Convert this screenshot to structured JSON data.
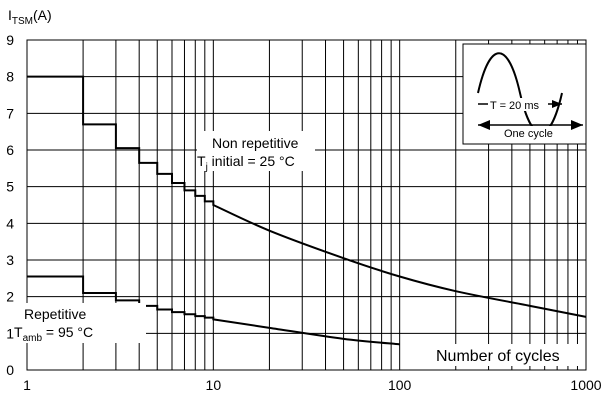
{
  "chart_data": {
    "type": "line",
    "x_scale": "log",
    "xlim": [
      1,
      1000
    ],
    "ylim": [
      0,
      9
    ],
    "grid": true,
    "y_axis_title_main": "I",
    "y_axis_title_sub": "TSM",
    "y_axis_title_unit": "(A)",
    "x_axis_title": "Number of cycles",
    "x_ticks": [
      "1",
      "10",
      "100",
      "1000"
    ],
    "y_ticks": [
      "0",
      "1",
      "2",
      "3",
      "4",
      "5",
      "6",
      "7",
      "8",
      "9"
    ],
    "series": [
      {
        "label_line1": "Non repetitive",
        "label_line2_main": "T",
        "label_line2_sub": "j",
        "label_line2_rest": " initial = 25 °C",
        "steps": [
          {
            "x": 1,
            "y": 8.0
          },
          {
            "x": 2,
            "y": 6.7
          },
          {
            "x": 3,
            "y": 6.05
          },
          {
            "x": 4,
            "y": 5.65
          },
          {
            "x": 5,
            "y": 5.35
          },
          {
            "x": 6,
            "y": 5.1
          },
          {
            "x": 7,
            "y": 4.9
          },
          {
            "x": 8,
            "y": 4.75
          },
          {
            "x": 9,
            "y": 4.6
          }
        ],
        "curve": [
          {
            "x": 10,
            "y": 4.5
          },
          {
            "x": 20,
            "y": 3.8
          },
          {
            "x": 50,
            "y": 3.05
          },
          {
            "x": 100,
            "y": 2.55
          },
          {
            "x": 200,
            "y": 2.15
          },
          {
            "x": 500,
            "y": 1.75
          },
          {
            "x": 1000,
            "y": 1.45
          }
        ]
      },
      {
        "label_line1": "Repetitive",
        "label_line2_main": "T",
        "label_line2_sub": "amb",
        "label_line2_rest": " = 95 °C",
        "steps": [
          {
            "x": 1,
            "y": 2.55
          },
          {
            "x": 2,
            "y": 2.1
          },
          {
            "x": 3,
            "y": 1.9
          },
          {
            "x": 4,
            "y": 1.75
          },
          {
            "x": 5,
            "y": 1.65
          },
          {
            "x": 6,
            "y": 1.58
          },
          {
            "x": 7,
            "y": 1.52
          },
          {
            "x": 8,
            "y": 1.47
          },
          {
            "x": 9,
            "y": 1.43
          }
        ],
        "curve": [
          {
            "x": 10,
            "y": 1.38
          },
          {
            "x": 20,
            "y": 1.15
          },
          {
            "x": 50,
            "y": 0.85
          },
          {
            "x": 100,
            "y": 0.7
          }
        ]
      }
    ],
    "inset": {
      "period_label": "T = 20 ms",
      "cycle_label": "One cycle"
    }
  }
}
